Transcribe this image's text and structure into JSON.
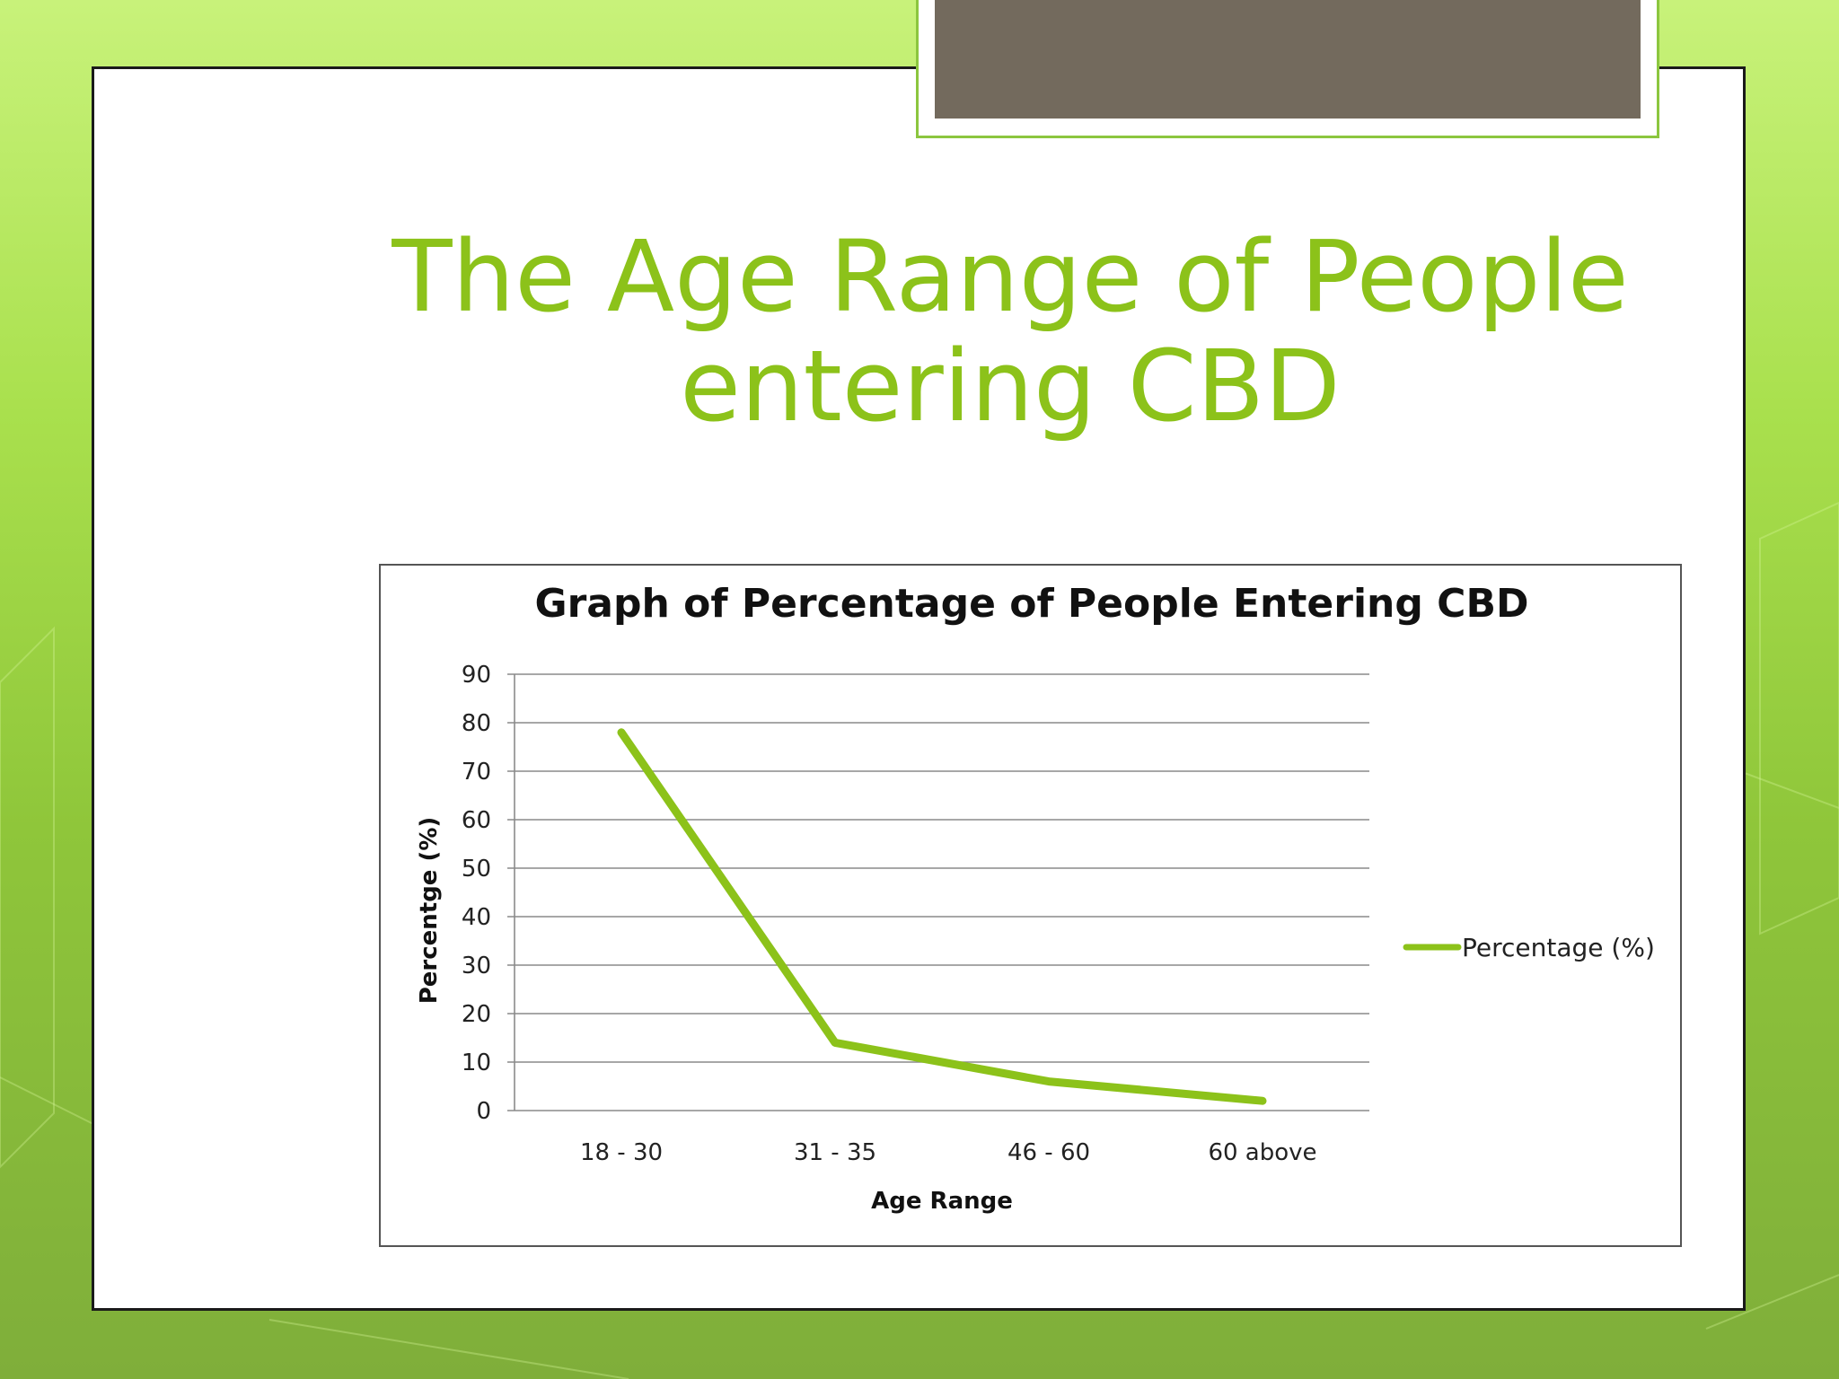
{
  "slide": {
    "title": "The Age Range of People entering CBD"
  },
  "colors": {
    "accent": "#8cc21a",
    "line": "#8cc21a",
    "tab_fill": "#736a5d"
  },
  "chart_data": {
    "type": "line",
    "title": "Graph of Percentage of People Entering CBD",
    "xlabel": "Age Range",
    "ylabel": "Percentge (%)",
    "categories": [
      "18 - 30",
      "31 - 35",
      "46 - 60",
      "60 above"
    ],
    "series": [
      {
        "name": "Percentage (%)",
        "values": [
          78,
          14,
          6,
          2
        ]
      }
    ],
    "ylim": [
      0,
      90
    ],
    "yticks": [
      0,
      10,
      20,
      30,
      40,
      50,
      60,
      70,
      80,
      90
    ],
    "grid": true,
    "legend": "right"
  }
}
